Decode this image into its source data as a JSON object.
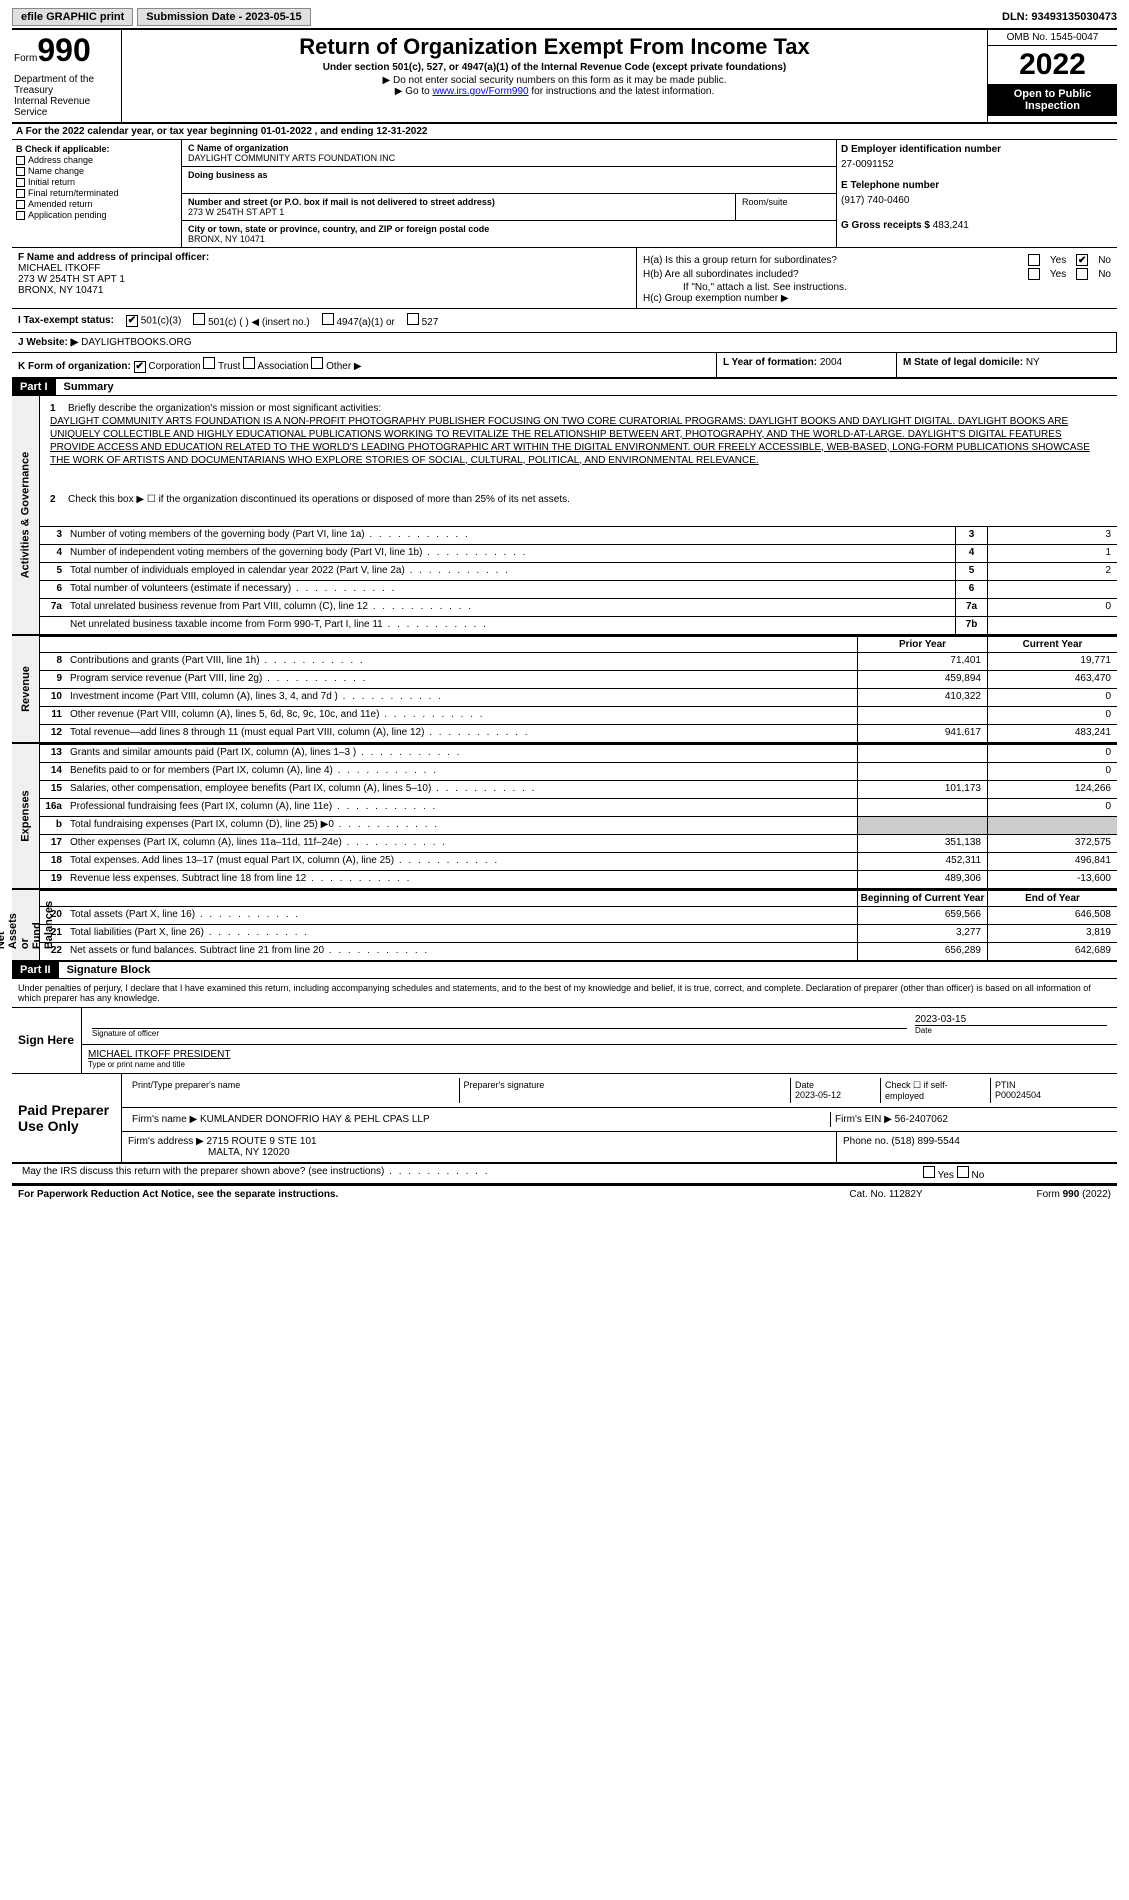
{
  "topbar": {
    "efile": "efile GRAPHIC print",
    "submission": "Submission Date - 2023-05-15",
    "dln": "DLN: 93493135030473"
  },
  "header": {
    "form_prefix": "Form",
    "form_num": "990",
    "title": "Return of Organization Exempt From Income Tax",
    "subtitle": "Under section 501(c), 527, or 4947(a)(1) of the Internal Revenue Code (except private foundations)",
    "note1": "▶ Do not enter social security numbers on this form as it may be made public.",
    "note2_pre": "▶ Go to ",
    "note2_link": "www.irs.gov/Form990",
    "note2_post": " for instructions and the latest information.",
    "dept": "Department of the Treasury\nInternal Revenue Service",
    "omb": "OMB No. 1545-0047",
    "year": "2022",
    "inspect": "Open to Public Inspection"
  },
  "cal": "A For the 2022 calendar year, or tax year beginning 01-01-2022   , and ending 12-31-2022",
  "b": {
    "hdr": "B Check if applicable:",
    "items": [
      "Address change",
      "Name change",
      "Initial return",
      "Final return/terminated",
      "Amended return",
      "Application pending"
    ]
  },
  "c": {
    "name_lbl": "C Name of organization",
    "name": "DAYLIGHT COMMUNITY ARTS FOUNDATION INC",
    "dba_lbl": "Doing business as",
    "dba": "",
    "addr_lbl": "Number and street (or P.O. box if mail is not delivered to street address)",
    "room_lbl": "Room/suite",
    "addr": "273 W 254TH ST APT 1",
    "city_lbl": "City or town, state or province, country, and ZIP or foreign postal code",
    "city": "BRONX, NY  10471"
  },
  "d": {
    "lbl": "D Employer identification number",
    "val": "27-0091152"
  },
  "e": {
    "lbl": "E Telephone number",
    "val": "(917) 740-0460"
  },
  "g": {
    "lbl": "G Gross receipts $",
    "val": "483,241"
  },
  "f": {
    "lbl": "F  Name and address of principal officer:",
    "name": "MICHAEL ITKOFF",
    "addr1": "273 W 254TH ST APT 1",
    "addr2": "BRONX, NY  10471"
  },
  "h": {
    "a": "H(a)  Is this a group return for subordinates?",
    "a_no": "✔",
    "b": "H(b)  Are all subordinates included?",
    "note": "If \"No,\" attach a list. See instructions.",
    "c": "H(c)  Group exemption number ▶"
  },
  "i": {
    "lbl": "I   Tax-exempt status:",
    "c3": "501(c)(3)",
    "cn": "501(c) (  ) ◀ (insert no.)",
    "a1": "4947(a)(1) or",
    "527": "527"
  },
  "j": {
    "lbl": "J   Website: ▶",
    "val": "DAYLIGHTBOOKS.ORG"
  },
  "k": {
    "lbl": "K Form of organization:",
    "corp": "Corporation",
    "trust": "Trust",
    "assoc": "Association",
    "other": "Other ▶"
  },
  "l": {
    "lbl": "L Year of formation:",
    "val": "2004"
  },
  "m": {
    "lbl": "M State of legal domicile:",
    "val": "NY"
  },
  "part1": {
    "hdr": "Part I",
    "title": "Summary"
  },
  "summary": {
    "q1": "Briefly describe the organization's mission or most significant activities:",
    "mission": "DAYLIGHT COMMUNITY ARTS FOUNDATION IS A NON-PROFIT PHOTOGRAPHY PUBLISHER FOCUSING ON TWO CORE CURATORIAL PROGRAMS: DAYLIGHT BOOKS AND DAYLIGHT DIGITAL. DAYLIGHT BOOKS ARE UNIQUELY COLLECTIBLE AND HIGHLY EDUCATIONAL PUBLICATIONS WORKING TO REVITALIZE THE RELATIONSHIP BETWEEN ART, PHOTOGRAPHY, AND THE WORLD-AT-LARGE. DAYLIGHT'S DIGITAL FEATURES PROVIDE ACCESS AND EDUCATION RELATED TO THE WORLD'S LEADING PHOTOGRAPHIC ART WITHIN THE DIGITAL ENVIRONMENT. OUR FREELY ACCESSIBLE, WEB-BASED, LONG-FORM PUBLICATIONS SHOWCASE THE WORK OF ARTISTS AND DOCUMENTARIANS WHO EXPLORE STORIES OF SOCIAL, CULTURAL, POLITICAL, AND ENVIRONMENTAL RELEVANCE.",
    "q2": "Check this box ▶ ☐ if the organization discontinued its operations or disposed of more than 25% of its net assets.",
    "rows": [
      {
        "n": "3",
        "d": "Number of voting members of the governing body (Part VI, line 1a)",
        "c": "3",
        "v": "3"
      },
      {
        "n": "4",
        "d": "Number of independent voting members of the governing body (Part VI, line 1b)",
        "c": "4",
        "v": "1"
      },
      {
        "n": "5",
        "d": "Total number of individuals employed in calendar year 2022 (Part V, line 2a)",
        "c": "5",
        "v": "2"
      },
      {
        "n": "6",
        "d": "Total number of volunteers (estimate if necessary)",
        "c": "6",
        "v": ""
      },
      {
        "n": "7a",
        "d": "Total unrelated business revenue from Part VIII, column (C), line 12",
        "c": "7a",
        "v": "0"
      },
      {
        "n": "",
        "d": "Net unrelated business taxable income from Form 990-T, Part I, line 11",
        "c": "7b",
        "v": ""
      }
    ]
  },
  "vlabels": {
    "ag": "Activities & Governance",
    "rev": "Revenue",
    "exp": "Expenses",
    "net": "Net Assets or\nFund Balances"
  },
  "cols": {
    "prior": "Prior Year",
    "curr": "Current Year",
    "begin": "Beginning of Current Year",
    "end": "End of Year"
  },
  "revenue": [
    {
      "n": "8",
      "d": "Contributions and grants (Part VIII, line 1h)",
      "p": "71,401",
      "c": "19,771"
    },
    {
      "n": "9",
      "d": "Program service revenue (Part VIII, line 2g)",
      "p": "459,894",
      "c": "463,470"
    },
    {
      "n": "10",
      "d": "Investment income (Part VIII, column (A), lines 3, 4, and 7d )",
      "p": "410,322",
      "c": "0"
    },
    {
      "n": "11",
      "d": "Other revenue (Part VIII, column (A), lines 5, 6d, 8c, 9c, 10c, and 11e)",
      "p": "",
      "c": "0"
    },
    {
      "n": "12",
      "d": "Total revenue—add lines 8 through 11 (must equal Part VIII, column (A), line 12)",
      "p": "941,617",
      "c": "483,241"
    }
  ],
  "expenses": [
    {
      "n": "13",
      "d": "Grants and similar amounts paid (Part IX, column (A), lines 1–3 )",
      "p": "",
      "c": "0"
    },
    {
      "n": "14",
      "d": "Benefits paid to or for members (Part IX, column (A), line 4)",
      "p": "",
      "c": "0"
    },
    {
      "n": "15",
      "d": "Salaries, other compensation, employee benefits (Part IX, column (A), lines 5–10)",
      "p": "101,173",
      "c": "124,266"
    },
    {
      "n": "16a",
      "d": "Professional fundraising fees (Part IX, column (A), line 11e)",
      "p": "",
      "c": "0"
    },
    {
      "n": "b",
      "d": "Total fundraising expenses (Part IX, column (D), line 25) ▶0",
      "p": "SHADE",
      "c": "SHADE"
    },
    {
      "n": "17",
      "d": "Other expenses (Part IX, column (A), lines 11a–11d, 11f–24e)",
      "p": "351,138",
      "c": "372,575"
    },
    {
      "n": "18",
      "d": "Total expenses. Add lines 13–17 (must equal Part IX, column (A), line 25)",
      "p": "452,311",
      "c": "496,841"
    },
    {
      "n": "19",
      "d": "Revenue less expenses. Subtract line 18 from line 12",
      "p": "489,306",
      "c": "-13,600"
    }
  ],
  "net": [
    {
      "n": "20",
      "d": "Total assets (Part X, line 16)",
      "p": "659,566",
      "c": "646,508"
    },
    {
      "n": "21",
      "d": "Total liabilities (Part X, line 26)",
      "p": "3,277",
      "c": "3,819"
    },
    {
      "n": "22",
      "d": "Net assets or fund balances. Subtract line 21 from line 20",
      "p": "656,289",
      "c": "642,689"
    }
  ],
  "part2": {
    "hdr": "Part II",
    "title": "Signature Block"
  },
  "penalty": "Under penalties of perjury, I declare that I have examined this return, including accompanying schedules and statements, and to the best of my knowledge and belief, it is true, correct, and complete. Declaration of preparer (other than officer) is based on all information of which preparer has any knowledge.",
  "sign": {
    "here": "Sign Here",
    "sig_lbl": "Signature of officer",
    "date_lbl": "Date",
    "date": "2023-03-15",
    "name": "MICHAEL ITKOFF  PRESIDENT",
    "name_lbl": "Type or print name and title"
  },
  "paid": {
    "lbl": "Paid Preparer Use Only",
    "h1": "Print/Type preparer's name",
    "h2": "Preparer's signature",
    "h3": "Date",
    "h3v": "2023-05-12",
    "h4": "Check ☐ if self-employed",
    "h5": "PTIN",
    "h5v": "P00024504",
    "firm_lbl": "Firm's name   ▶",
    "firm": "KUMLANDER DONOFRIO HAY & PEHL CPAS LLP",
    "ein_lbl": "Firm's EIN ▶",
    "ein": "56-2407062",
    "addr_lbl": "Firm's address ▶",
    "addr": "2715 ROUTE 9 STE 101",
    "city": "MALTA, NY  12020",
    "ph_lbl": "Phone no.",
    "ph": "(518) 899-5544"
  },
  "discuss": "May the IRS discuss this return with the preparer shown above? (see instructions)",
  "footer": {
    "l": "For Paperwork Reduction Act Notice, see the separate instructions.",
    "m": "Cat. No. 11282Y",
    "r": "Form 990 (2022)"
  }
}
